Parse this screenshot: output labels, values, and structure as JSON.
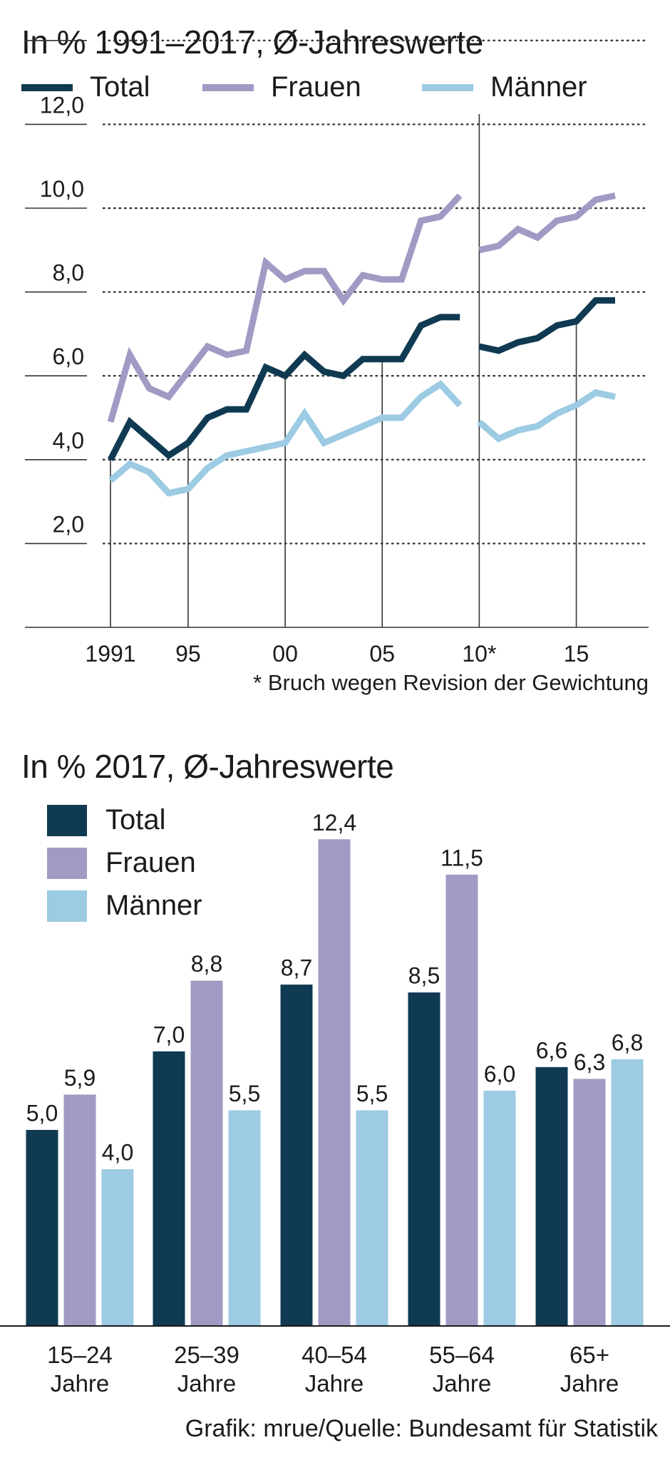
{
  "charts": {
    "line": {
      "title": "In % 1991–2017, Ø-Jahreswerte",
      "legend": [
        "Total",
        "Frauen",
        "Männer"
      ],
      "footnote": "* Bruch wegen Revision der Gewichtung"
    },
    "bar": {
      "title": "In % 2017, Ø-Jahreswerte",
      "legend": [
        "Total",
        "Frauen",
        "Männer"
      ]
    }
  },
  "source": "Grafik: mrue/Quelle: Bundesamt für Statistik",
  "colors": {
    "total": "#0f3a52",
    "frauen": "#a29ac4",
    "maenner": "#9ccbe3",
    "grid": "#333333"
  },
  "chart_data": [
    {
      "type": "line",
      "title": "In % 1991–2017, Ø-Jahreswerte",
      "x": [
        1991,
        1992,
        1993,
        1994,
        1995,
        1996,
        1997,
        1998,
        1999,
        2000,
        2001,
        2002,
        2003,
        2004,
        2005,
        2006,
        2007,
        2008,
        2009,
        2010,
        2011,
        2012,
        2013,
        2014,
        2015,
        2016,
        2017
      ],
      "x_tick_values": [
        1991,
        1995,
        2000,
        2005,
        2010,
        2015
      ],
      "x_tick_labels": [
        "1991",
        "95",
        "00",
        "05",
        "10*",
        "15"
      ],
      "y_tick_values": [
        2,
        4,
        6,
        8,
        10,
        12
      ],
      "y_tick_labels": [
        "2,0",
        "4,0",
        "6,0",
        "8,0",
        "10,0",
        "12,0"
      ],
      "ylim": [
        0,
        13
      ],
      "break_after": 2009,
      "series": [
        {
          "name": "Total",
          "key": "total",
          "values": [
            4.0,
            4.9,
            4.5,
            4.1,
            4.4,
            5.0,
            5.2,
            5.2,
            6.2,
            6.0,
            6.5,
            6.1,
            6.0,
            6.4,
            6.4,
            6.4,
            7.2,
            7.4,
            7.4,
            6.7,
            6.6,
            6.8,
            6.9,
            7.2,
            7.3,
            7.8,
            7.8
          ]
        },
        {
          "name": "Frauen",
          "key": "frauen",
          "values": [
            4.9,
            6.5,
            5.7,
            5.5,
            6.1,
            6.7,
            6.5,
            6.6,
            8.7,
            8.3,
            8.5,
            8.5,
            7.8,
            8.4,
            8.3,
            8.3,
            9.7,
            9.8,
            10.3,
            9.0,
            9.1,
            9.5,
            9.3,
            9.7,
            9.8,
            10.2,
            10.3
          ]
        },
        {
          "name": "Männer",
          "key": "maenner",
          "values": [
            3.5,
            3.9,
            3.7,
            3.2,
            3.3,
            3.8,
            4.1,
            4.2,
            4.3,
            4.4,
            5.1,
            4.4,
            4.6,
            4.8,
            5.0,
            5.0,
            5.5,
            5.8,
            5.3,
            4.9,
            4.5,
            4.7,
            4.8,
            5.1,
            5.3,
            5.6,
            5.5
          ]
        }
      ]
    },
    {
      "type": "bar",
      "title": "In % 2017, Ø-Jahreswerte",
      "categories": [
        [
          "15–24",
          "Jahre"
        ],
        [
          "25–39",
          "Jahre"
        ],
        [
          "40–54",
          "Jahre"
        ],
        [
          "55–64",
          "Jahre"
        ],
        [
          "65+",
          "Jahre"
        ]
      ],
      "ylim": [
        0,
        13.5
      ],
      "series": [
        {
          "name": "Total",
          "key": "total",
          "values": [
            5.0,
            7.0,
            8.7,
            8.5,
            6.6
          ],
          "labels": [
            "5,0",
            "7,0",
            "8,7",
            "8,5",
            "6,6"
          ]
        },
        {
          "name": "Frauen",
          "key": "frauen",
          "values": [
            5.9,
            8.8,
            12.4,
            11.5,
            6.3
          ],
          "labels": [
            "5,9",
            "8,8",
            "12,4",
            "11,5",
            "6,3"
          ]
        },
        {
          "name": "Männer",
          "key": "maenner",
          "values": [
            4.0,
            5.5,
            5.5,
            6.0,
            6.8
          ],
          "labels": [
            "4,0",
            "5,5",
            "5,5",
            "6,0",
            "6,8"
          ]
        }
      ]
    }
  ]
}
